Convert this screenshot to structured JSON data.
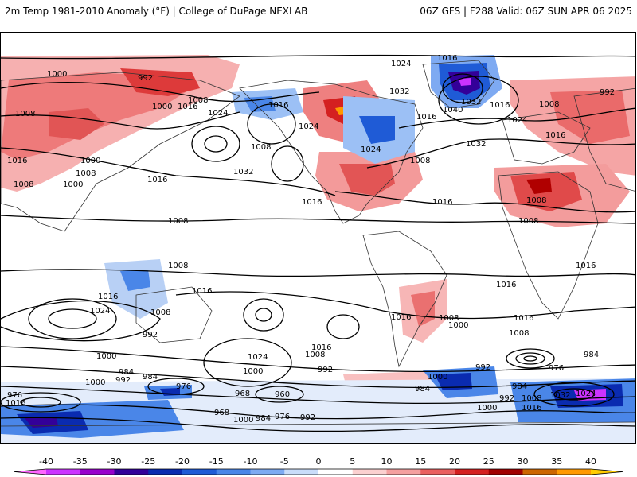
{
  "header": {
    "title_left": "2m Temp 1981-2010 Anomaly (°F) | College of DuPage NEXLAB",
    "title_right": "06Z GFS | F288 Valid: 06Z SUN APR 06 2025"
  },
  "map": {
    "variable": "2m temperature anomaly",
    "units": "°F",
    "contour_variable": "mean sea level pressure isobars",
    "isobar_labels": [
      "1000",
      "992",
      "1008",
      "1016",
      "1024",
      "1032",
      "1040",
      "984",
      "976",
      "968",
      "960"
    ]
  },
  "colorbar": {
    "tick_labels": [
      "-40",
      "-35",
      "-30",
      "-25",
      "-20",
      "-15",
      "-10",
      "-5",
      "0",
      "5",
      "10",
      "15",
      "20",
      "25",
      "30",
      "35",
      "40"
    ],
    "colors": [
      "#ff66ff",
      "#cc33ff",
      "#9900cc",
      "#330099",
      "#0a2bb0",
      "#1f5bd6",
      "#4a86e8",
      "#7eaaf2",
      "#c9dcf9",
      "#ffffff",
      "#fbd0d0",
      "#f4a0a0",
      "#ea6060",
      "#d42020",
      "#a00000",
      "#cc6600",
      "#ff9900",
      "#ffcc00"
    ]
  }
}
